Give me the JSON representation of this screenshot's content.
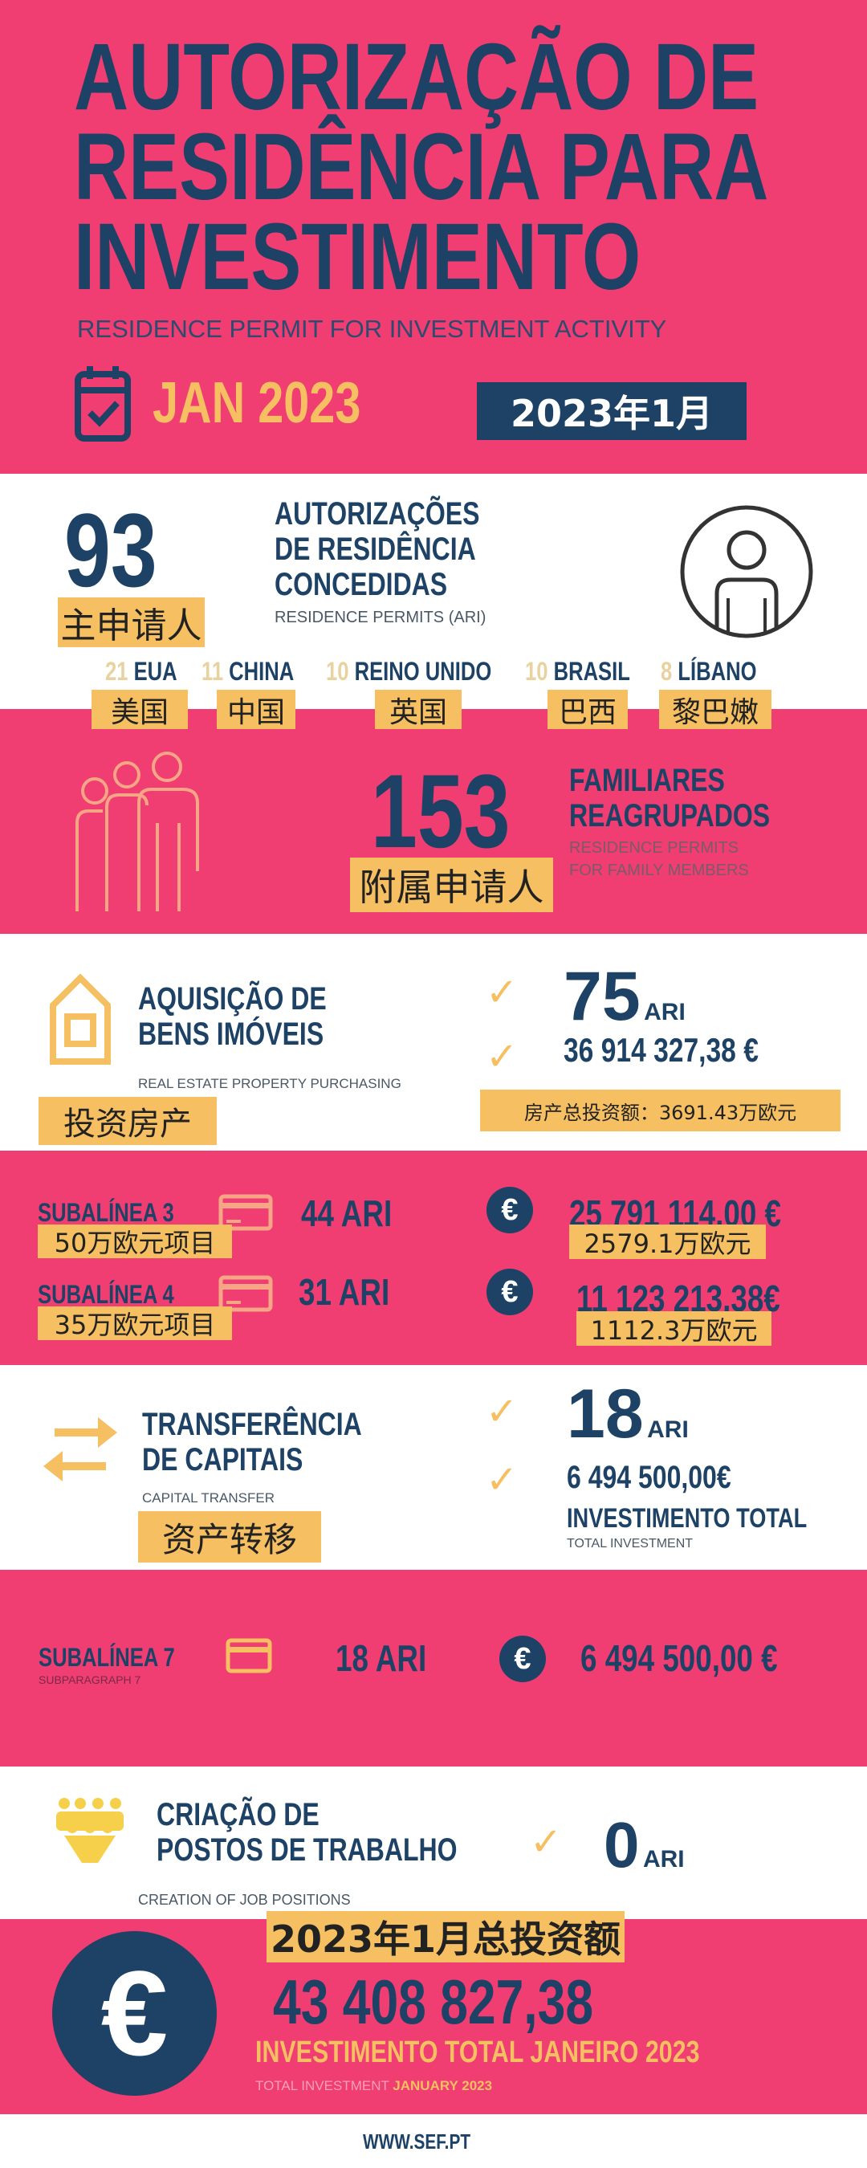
{
  "colors": {
    "pink": "#f03d72",
    "navy": "#1d4266",
    "yellow": "#f6c062"
  },
  "header": {
    "title_lines": [
      "AUTORIZAÇÃO DE",
      "RESIDÊNCIA PARA",
      "INVESTIMENTO"
    ],
    "subtitle": "RESIDENCE PERMIT FOR INVESTMENT ACTIVITY",
    "date": "JAN 2023",
    "date_cn": "2023年1月",
    "icon": "calendar-check-icon"
  },
  "permits": {
    "count": "93",
    "count_cn": "主申请人",
    "title_lines": [
      "AUTORIZAÇÕES",
      "DE RESIDÊNCIA",
      "CONCEDIDAS"
    ],
    "subtitle": "RESIDENCE PERMITS  (ARI)",
    "icon": "person-icon",
    "countries": [
      {
        "n": "21",
        "name": "EUA",
        "cn": "美国"
      },
      {
        "n": "11",
        "name": "CHINA",
        "cn": "中国"
      },
      {
        "n": "10",
        "name": "REINO UNIDO",
        "cn": "英国"
      },
      {
        "n": "10",
        "name": "BRASIL",
        "cn": "巴西"
      },
      {
        "n": "8",
        "name": "LÍBANO",
        "cn": "黎巴嫩"
      }
    ]
  },
  "family": {
    "count": "153",
    "count_cn": "附属申请人",
    "title_lines": [
      "FAMILIARES",
      "REAGRUPADOS"
    ],
    "subtitle_lines": [
      "RESIDENCE PERMITS",
      "FOR FAMILY MEMBERS"
    ],
    "icon": "family-icon"
  },
  "real_estate": {
    "title_lines": [
      "AQUISIÇÃO DE",
      "BENS IMÓVEIS"
    ],
    "subtitle": "REAL ESTATE PROPERTY PURCHASING",
    "cn": "投资房产",
    "ari": "75",
    "ari_unit": "ARI",
    "amount": "36 914 327,38 €",
    "amount_cn": "房产总投资额：3691.43万欧元",
    "icon": "house-icon",
    "rows": [
      {
        "label": "SUBALÍNEA 3",
        "cn": "50万欧元项目",
        "ari": "44 ARI",
        "amount": "25 791 114,00 €",
        "amount_cn": "2579.1万欧元"
      },
      {
        "label": "SUBALÍNEA 4",
        "cn": "35万欧元项目",
        "ari": "31 ARI",
        "amount": "11 123 213,38€",
        "amount_cn": "1112.3万欧元"
      }
    ]
  },
  "capital": {
    "title_lines": [
      "TRANSFERÊNCIA",
      "DE CAPITAIS"
    ],
    "subtitle": "CAPITAL TRANSFER",
    "cn": "资产转移",
    "ari": "18",
    "ari_unit": "ARI",
    "amount": "6 494 500,00€",
    "total_label": "INVESTIMENTO TOTAL",
    "total_sub": "TOTAL INVESTMENT",
    "icon": "transfer-arrows-icon",
    "row": {
      "label": "SUBALÍNEA 7",
      "sub": "SUBPARAGRAPH 7",
      "ari": "18 ARI",
      "amount": "6 494 500,00 €"
    }
  },
  "jobs": {
    "title_lines": [
      "CRIAÇÃO DE",
      "POSTOS DE TRABALHO"
    ],
    "subtitle": "CREATION OF JOB POSITIONS",
    "ari": "0",
    "ari_unit": "ARI",
    "icon": "crowd-icon"
  },
  "total": {
    "cn": "2023年1月总投资额",
    "amount": "43 408 827,38",
    "label": "INVESTIMENTO TOTAL JANEIRO 2023",
    "sub_a": "TOTAL INVESTMENT ",
    "sub_b": "JANUARY 2023",
    "euro": "€"
  },
  "footer": {
    "url": "WWW.SEF.PT"
  }
}
